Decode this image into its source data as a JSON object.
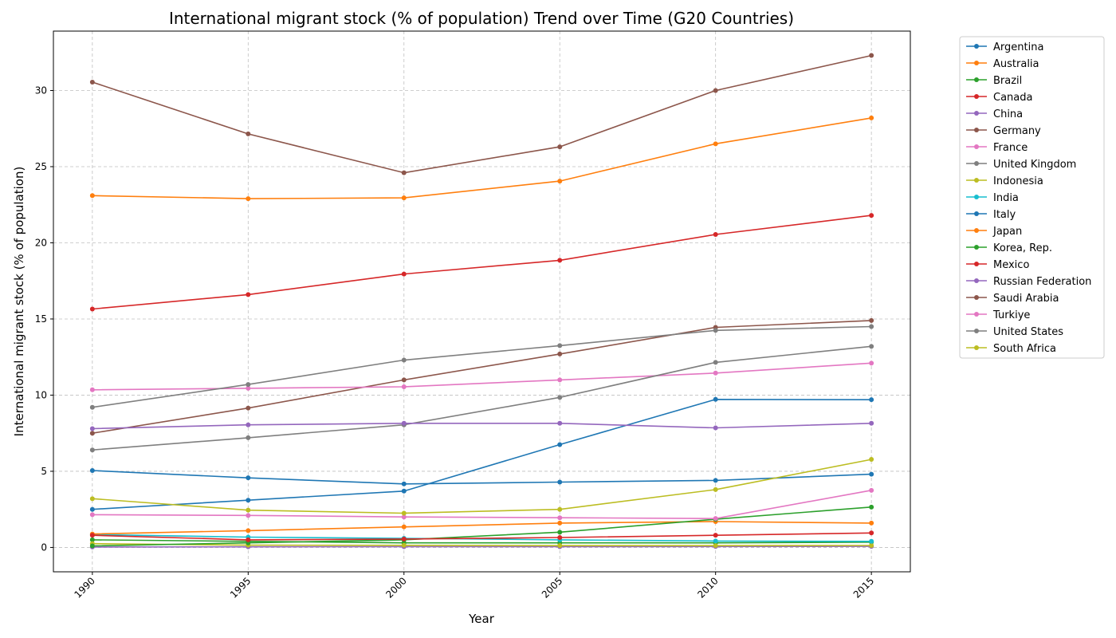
{
  "chart_data": {
    "type": "line",
    "title": "International migrant stock (% of population) Trend over Time (G20 Countries)",
    "xlabel": "Year",
    "ylabel": "International migrant stock (% of population)",
    "x": [
      1990,
      1995,
      2000,
      2005,
      2010,
      2015
    ],
    "xticks": [
      "1990",
      "1995",
      "2000",
      "2005",
      "2010",
      "2015"
    ],
    "yticks": [
      0,
      5,
      10,
      15,
      20,
      25,
      30
    ],
    "ylim": [
      -1.6,
      33.9
    ],
    "xlim": [
      1988.75,
      2016.25
    ],
    "grid": true,
    "legend_position": "outside-right",
    "series": [
      {
        "name": "Argentina",
        "color": "#1f77b4",
        "values": [
          5.05,
          4.57,
          4.17,
          4.29,
          4.4,
          4.81
        ]
      },
      {
        "name": "Australia",
        "color": "#ff7f0e",
        "values": [
          23.1,
          22.9,
          22.95,
          24.05,
          26.5,
          28.2
        ]
      },
      {
        "name": "Brazil",
        "color": "#2ca02c",
        "values": [
          0.5,
          0.4,
          0.3,
          0.3,
          0.3,
          0.35
        ]
      },
      {
        "name": "Canada",
        "color": "#d62728",
        "values": [
          15.65,
          16.6,
          17.95,
          18.85,
          20.55,
          21.8
        ]
      },
      {
        "name": "China",
        "color": "#9467bd",
        "values": [
          0.03,
          0.04,
          0.05,
          0.05,
          0.06,
          0.07
        ]
      },
      {
        "name": "Germany",
        "color": "#8c564b",
        "values": [
          7.5,
          9.15,
          11.0,
          12.7,
          14.45,
          14.9
        ]
      },
      {
        "name": "France",
        "color": "#e377c2",
        "values": [
          10.35,
          10.45,
          10.55,
          11.0,
          11.45,
          12.1
        ]
      },
      {
        "name": "United Kingdom",
        "color": "#7f7f7f",
        "values": [
          6.4,
          7.2,
          8.05,
          9.85,
          12.15,
          13.2
        ]
      },
      {
        "name": "Indonesia",
        "color": "#bcbd22",
        "values": [
          0.25,
          0.15,
          0.14,
          0.12,
          0.12,
          0.13
        ]
      },
      {
        "name": "India",
        "color": "#17becf",
        "values": [
          0.85,
          0.68,
          0.6,
          0.5,
          0.42,
          0.4
        ]
      },
      {
        "name": "Italy",
        "color": "#1f77b4",
        "values": [
          2.5,
          3.1,
          3.7,
          6.75,
          9.72,
          9.7
        ]
      },
      {
        "name": "Japan",
        "color": "#ff7f0e",
        "values": [
          0.88,
          1.1,
          1.35,
          1.6,
          1.7,
          1.6
        ]
      },
      {
        "name": "Korea, Rep.",
        "color": "#2ca02c",
        "values": [
          0.1,
          0.3,
          0.5,
          1.0,
          1.85,
          2.65
        ]
      },
      {
        "name": "Mexico",
        "color": "#d62728",
        "values": [
          0.8,
          0.5,
          0.55,
          0.65,
          0.8,
          0.95
        ]
      },
      {
        "name": "Russian Federation",
        "color": "#9467bd",
        "values": [
          7.8,
          8.05,
          8.15,
          8.15,
          7.85,
          8.15
        ]
      },
      {
        "name": "Saudi Arabia",
        "color": "#8c564b",
        "values": [
          30.55,
          27.15,
          24.6,
          26.3,
          30.0,
          32.3
        ]
      },
      {
        "name": "Turkiye",
        "color": "#e377c2",
        "values": [
          2.15,
          2.1,
          2.0,
          1.95,
          1.9,
          3.75
        ]
      },
      {
        "name": "United States",
        "color": "#7f7f7f",
        "values": [
          9.2,
          10.7,
          12.3,
          13.25,
          14.25,
          14.5
        ]
      },
      {
        "name": "South Africa",
        "color": "#bcbd22",
        "values": [
          3.2,
          2.45,
          2.25,
          2.5,
          3.8,
          5.78
        ]
      }
    ]
  }
}
